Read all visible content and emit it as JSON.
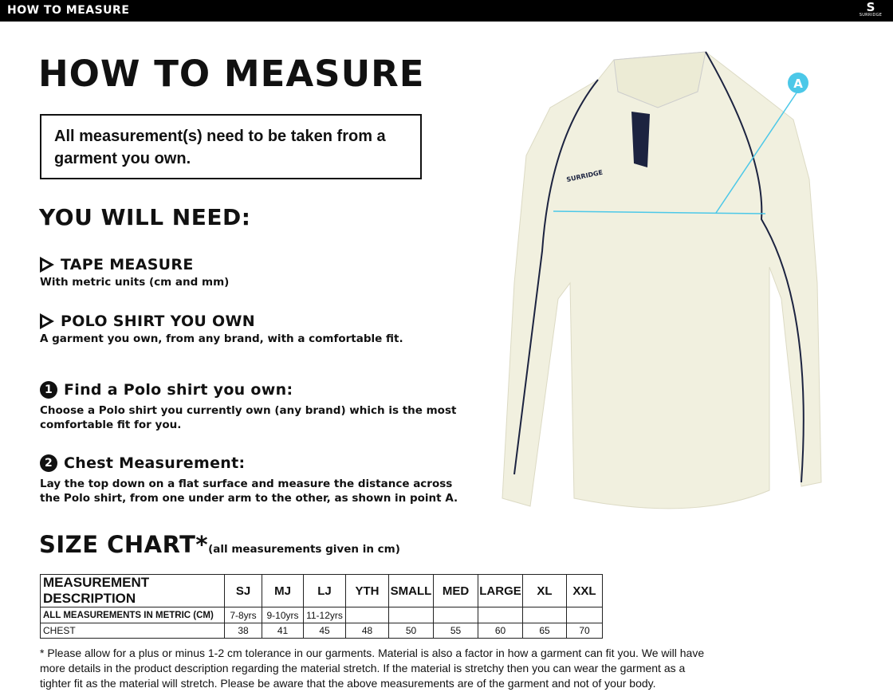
{
  "header": {
    "title": "HOW TO MEASURE",
    "logo": "SURRIDGE"
  },
  "page_title": "HOW TO MEASURE",
  "note": "All measurement(s) need to be taken from a garment you own.",
  "need_title": "YOU WILL NEED:",
  "needs": [
    {
      "title": "TAPE MEASURE",
      "desc": "With metric units (cm and mm)"
    },
    {
      "title": "POLO SHIRT YOU OWN",
      "desc": "A garment you own, from any brand, with a comfortable fit."
    }
  ],
  "steps": [
    {
      "num": "1",
      "title": "Find a Polo shirt you own:",
      "desc": "Choose a Polo shirt you currently own (any brand) which is the most comfortable fit for you."
    },
    {
      "num": "2",
      "title": "Chest Measurement:",
      "desc": "Lay the top down on a flat surface and measure the distance across the Polo shirt, from one under arm to the other, as shown in point A."
    }
  ],
  "size_chart": {
    "title": "SIZE CHART*",
    "subtitle": "(all measurements given in cm)",
    "headers": [
      "MEASUREMENT DESCRIPTION",
      "SJ",
      "MJ",
      "LJ",
      "YTH",
      "SMALL",
      "MED",
      "LARGE",
      "XL",
      "XXL"
    ],
    "rows": [
      [
        "ALL MEASUREMENTS IN METRIC (CM)",
        "7-8yrs",
        "9-10yrs",
        "11-12yrs",
        "",
        "",
        "",
        "",
        "",
        ""
      ],
      [
        "CHEST",
        "38",
        "41",
        "45",
        "48",
        "50",
        "55",
        "60",
        "65",
        "70"
      ]
    ]
  },
  "footnote": "* Please allow for a plus or minus 1-2 cm tolerance in our garments. Material is also a factor in how a garment can fit you. We will have more details in the product description regarding the material stretch.  If the material is stretchy then you can wear the garment as a tighter fit as the material will stretch.  Please be aware that the above measurements are of the garment and not of your body.",
  "image": {
    "point_label": "A",
    "shirt_logo": "SURRIDGE",
    "accent": "#4cc8e8"
  }
}
